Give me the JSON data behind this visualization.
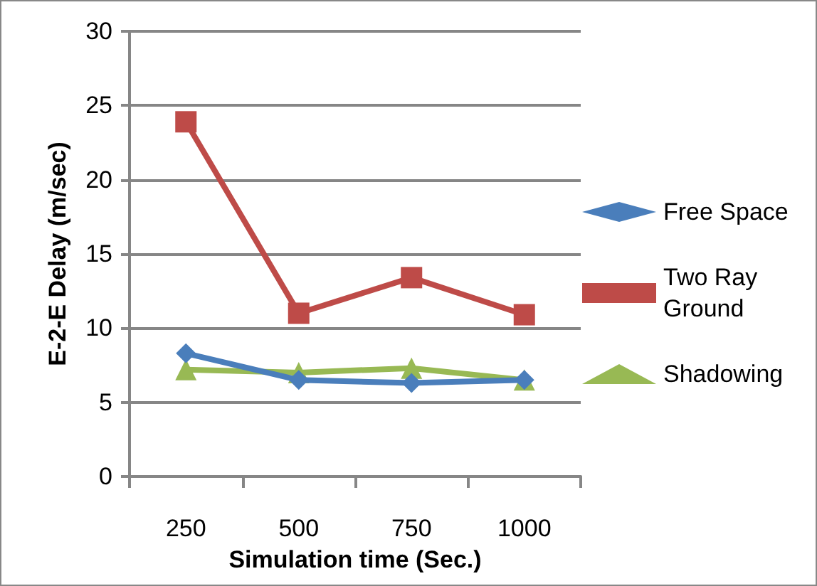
{
  "chart_data": {
    "type": "line",
    "xlabel": "Simulation time (Sec.)",
    "ylabel": "E-2-E Delay (m/sec)",
    "categories": [
      "250",
      "500",
      "750",
      "1000"
    ],
    "series": [
      {
        "name": "Free Space",
        "color": "#4a7ebb",
        "marker": "diamond",
        "values": [
          8.3,
          6.5,
          6.3,
          6.5
        ]
      },
      {
        "name": "Two Ray Ground",
        "color": "#be4b48",
        "marker": "square",
        "values": [
          23.9,
          11,
          13.4,
          10.9
        ]
      },
      {
        "name": "Shadowing",
        "color": "#98b954",
        "marker": "triangle",
        "values": [
          7.2,
          7.0,
          7.3,
          6.5
        ]
      }
    ],
    "ylim": [
      0,
      30
    ],
    "yticks": [
      0,
      5,
      10,
      15,
      20,
      25,
      30
    ],
    "grid": "y",
    "legend": "right",
    "line_style": "solid"
  }
}
